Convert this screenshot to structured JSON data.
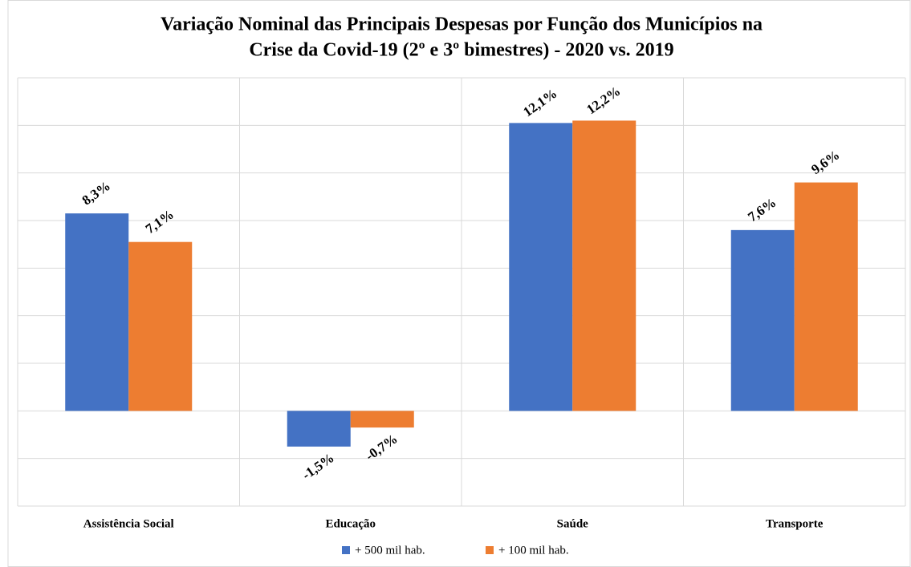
{
  "chart_data": {
    "type": "bar",
    "title": [
      "Variação Nominal das Principais Despesas por Função dos Municípios na",
      "Crise da Covid-19 (2º e 3º bimestres) - 2020 vs. 2019"
    ],
    "categories": [
      "Assistência Social",
      "Educação",
      "Saúde",
      "Transporte"
    ],
    "series": [
      {
        "name": "+ 500 mil hab.",
        "color": "#4472c4",
        "values": [
          8.3,
          -1.5,
          12.1,
          7.6
        ],
        "value_labels": [
          "8,3%",
          "-1,5%",
          "12,1%",
          "7,6%"
        ]
      },
      {
        "name": "+ 100 mil hab.",
        "color": "#ed7d31",
        "values": [
          7.1,
          -0.7,
          12.2,
          9.6
        ],
        "value_labels": [
          "7,1%",
          "-0,7%",
          "12,2%",
          "9,6%"
        ]
      }
    ],
    "ylim": [
      -4,
      14
    ],
    "yticks": [
      -4,
      -2,
      0,
      2,
      4,
      6,
      8,
      10,
      12,
      14
    ],
    "grid": true,
    "legend": "bottom"
  }
}
